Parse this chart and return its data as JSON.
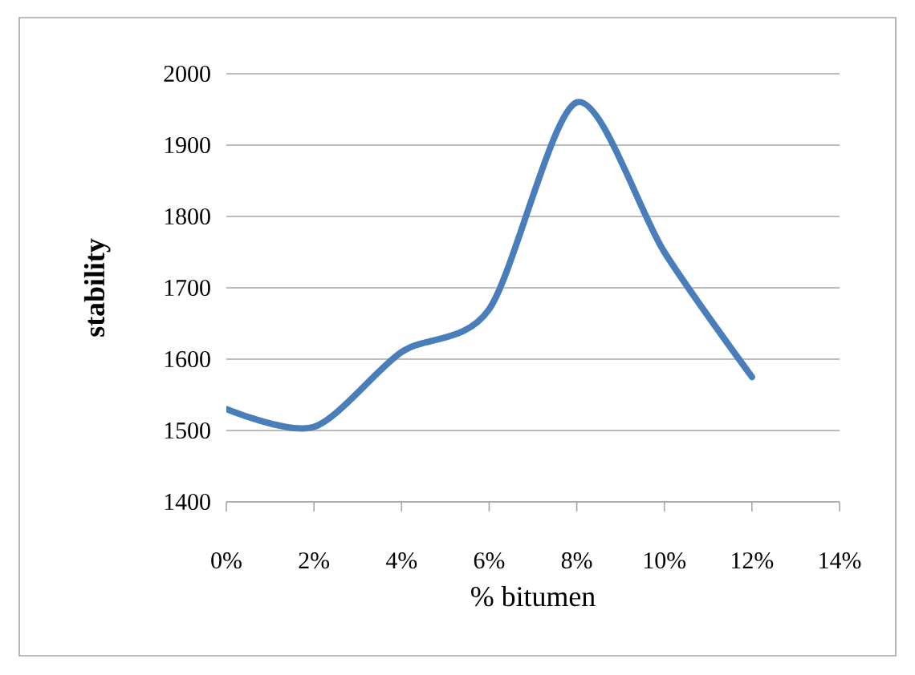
{
  "chart_data": {
    "type": "line",
    "xlabel": "% bitumen",
    "ylabel": "stability",
    "x": [
      0,
      2,
      4,
      6,
      8,
      10,
      12
    ],
    "values": [
      1530,
      1505,
      1610,
      1670,
      1960,
      1750,
      1575
    ],
    "color": "#4a7ebb",
    "marker": "none",
    "line_style": "solid",
    "grid": "y",
    "xlim": [
      0,
      14
    ],
    "ylim": [
      1400,
      2000
    ],
    "xticks": [
      {
        "value": 0,
        "label": "0%"
      },
      {
        "value": 2,
        "label": "2%"
      },
      {
        "value": 4,
        "label": "4%"
      },
      {
        "value": 6,
        "label": "6%"
      },
      {
        "value": 8,
        "label": "8%"
      },
      {
        "value": 10,
        "label": "10%"
      },
      {
        "value": 12,
        "label": "12%"
      },
      {
        "value": 14,
        "label": "14%"
      }
    ],
    "yticks": [
      1400,
      1500,
      1600,
      1700,
      1800,
      1900,
      2000
    ]
  }
}
